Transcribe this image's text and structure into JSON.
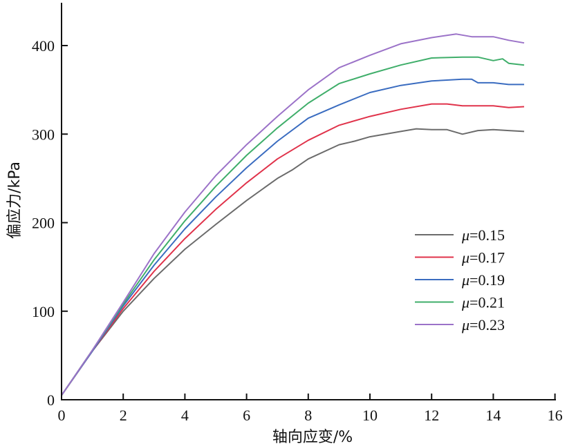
{
  "chart_data": {
    "type": "line",
    "title": "",
    "xlabel": "轴向应变/%",
    "ylabel": "偏应力/kPa",
    "xlim": [
      0,
      16
    ],
    "ylim": [
      0,
      450
    ],
    "xticks": [
      0,
      2,
      4,
      6,
      8,
      10,
      12,
      14,
      16
    ],
    "yticks": [
      0,
      100,
      200,
      300,
      400
    ],
    "grid": false,
    "legend_position": "right-middle",
    "legend_symbol": "μ",
    "series": [
      {
        "name": "μ=0.15",
        "symbol": "μ",
        "value_label": "=0.15",
        "color": "#6b6b6b",
        "x": [
          0,
          1,
          2,
          3,
          4,
          5,
          6,
          7,
          7.5,
          8,
          9,
          9.5,
          10,
          11,
          11.5,
          12,
          12.5,
          13,
          13.5,
          14,
          14.5,
          15
        ],
        "y": [
          5,
          55,
          100,
          137,
          170,
          198,
          225,
          250,
          260,
          272,
          288,
          292,
          297,
          303,
          306,
          305,
          305,
          300,
          304,
          305,
          304,
          303
        ]
      },
      {
        "name": "μ=0.17",
        "symbol": "μ",
        "value_label": "=0.17",
        "color": "#e0324a",
        "x": [
          0,
          1,
          2,
          3,
          4,
          5,
          6,
          7,
          8,
          9,
          10,
          11,
          12,
          12.5,
          13,
          14,
          14.5,
          15
        ],
        "y": [
          5,
          55,
          103,
          145,
          182,
          215,
          245,
          272,
          293,
          310,
          320,
          328,
          334,
          334,
          332,
          332,
          330,
          331
        ]
      },
      {
        "name": "μ=0.19",
        "symbol": "μ",
        "value_label": "=0.19",
        "color": "#3a6cc0",
        "x": [
          0,
          1,
          2,
          3,
          4,
          5,
          6,
          7,
          8,
          9,
          10,
          11,
          12,
          13,
          13.3,
          13.5,
          14,
          14.5,
          15
        ],
        "y": [
          5,
          55,
          106,
          152,
          193,
          229,
          262,
          292,
          318,
          333,
          347,
          355,
          360,
          362,
          362,
          358,
          358,
          356,
          356
        ]
      },
      {
        "name": "μ=0.21",
        "symbol": "μ",
        "value_label": "=0.21",
        "color": "#3fae6a",
        "x": [
          0,
          1,
          2,
          3,
          4,
          5,
          6,
          7,
          8,
          9,
          10,
          11,
          12,
          13,
          13.5,
          14,
          14.3,
          14.5,
          15
        ],
        "y": [
          5,
          56,
          108,
          158,
          202,
          241,
          276,
          307,
          335,
          357,
          368,
          378,
          386,
          387,
          387,
          383,
          385,
          380,
          378
        ]
      },
      {
        "name": "μ=0.23",
        "symbol": "μ",
        "value_label": "=0.23",
        "color": "#9b72c8",
        "x": [
          0,
          1,
          2,
          3,
          4,
          5,
          6,
          7,
          8,
          9,
          10,
          11,
          12,
          12.8,
          13.3,
          14,
          14.5,
          15
        ],
        "y": [
          5,
          56,
          110,
          165,
          212,
          253,
          288,
          320,
          350,
          375,
          389,
          402,
          409,
          413,
          410,
          410,
          406,
          403
        ]
      }
    ]
  }
}
